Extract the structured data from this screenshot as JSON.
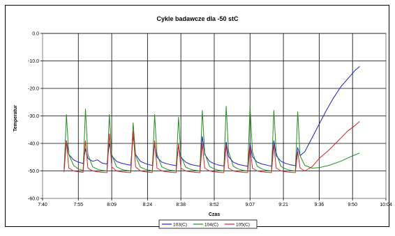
{
  "chart_data": {
    "type": "line",
    "title": "Cykle badawcze dla -50 stC",
    "xlabel": "Czas",
    "ylabel": "Temperatur",
    "ylim": [
      -60.0,
      0.0
    ],
    "y_ticks": [
      "0.0",
      "-10.0",
      "-20.0",
      "-30.0",
      "-40.0",
      "-50.0",
      "-60.0"
    ],
    "x_ticks": [
      "7:40",
      "7:55",
      "8:09",
      "8:24",
      "8:38",
      "8:52",
      "9:07",
      "9:21",
      "9:36",
      "9:50",
      "10:04"
    ],
    "grid": true,
    "legend_position": "bottom",
    "series": [
      {
        "name": "103(C)",
        "color": "#1f1fcf",
        "points": [
          [
            "7:49",
            -49.0
          ],
          [
            "7:50",
            -39.0
          ],
          [
            "7:51",
            -44.0
          ],
          [
            "7:53",
            -46.0
          ],
          [
            "7:55",
            -46.8
          ],
          [
            "7:57",
            -47.3
          ],
          [
            "7:58",
            -42.0
          ],
          [
            "7:59",
            -45.5
          ],
          [
            "8:01",
            -46.5
          ],
          [
            "8:03",
            -46.0
          ],
          [
            "8:05",
            -47.2
          ],
          [
            "8:07",
            -47.5
          ],
          [
            "8:08",
            -40.0
          ],
          [
            "8:09",
            -44.5
          ],
          [
            "8:11",
            -46.5
          ],
          [
            "8:13",
            -47.2
          ],
          [
            "8:15",
            -47.6
          ],
          [
            "8:17",
            -47.9
          ],
          [
            "8:18",
            -37.0
          ],
          [
            "8:19",
            -44.0
          ],
          [
            "8:21",
            -46.5
          ],
          [
            "8:23",
            -47.3
          ],
          [
            "8:25",
            -47.8
          ],
          [
            "8:26",
            -48.0
          ],
          [
            "8:27",
            -40.5
          ],
          [
            "8:28",
            -45.0
          ],
          [
            "8:30",
            -46.8
          ],
          [
            "8:32",
            -47.4
          ],
          [
            "8:34",
            -47.8
          ],
          [
            "8:36",
            -48.1
          ],
          [
            "8:37",
            -41.0
          ],
          [
            "8:38",
            -45.0
          ],
          [
            "8:40",
            -46.8
          ],
          [
            "8:42",
            -47.6
          ],
          [
            "8:44",
            -48.0
          ],
          [
            "8:46",
            -48.3
          ],
          [
            "8:47",
            -37.5
          ],
          [
            "8:48",
            -44.0
          ],
          [
            "8:50",
            -46.5
          ],
          [
            "8:52",
            -47.4
          ],
          [
            "8:54",
            -47.9
          ],
          [
            "8:56",
            -48.2
          ],
          [
            "8:57",
            -39.5
          ],
          [
            "8:58",
            -44.8
          ],
          [
            "9:00",
            -46.8
          ],
          [
            "9:02",
            -47.6
          ],
          [
            "9:04",
            -48.0
          ],
          [
            "9:06",
            -48.3
          ],
          [
            "9:07",
            -40.0
          ],
          [
            "9:08",
            -44.8
          ],
          [
            "9:10",
            -46.8
          ],
          [
            "9:12",
            -47.5
          ],
          [
            "9:14",
            -47.9
          ],
          [
            "9:16",
            -48.3
          ],
          [
            "9:17",
            -39.0
          ],
          [
            "9:18",
            -44.5
          ],
          [
            "9:20",
            -46.5
          ],
          [
            "9:22",
            -47.3
          ],
          [
            "9:24",
            -47.8
          ],
          [
            "9:26",
            -48.1
          ],
          [
            "9:27",
            -41.5
          ],
          [
            "9:28",
            -44.5
          ],
          [
            "9:30",
            -43.0
          ],
          [
            "9:33",
            -38.0
          ],
          [
            "9:36",
            -33.0
          ],
          [
            "9:39",
            -28.0
          ],
          [
            "9:42",
            -23.5
          ],
          [
            "9:45",
            -19.5
          ],
          [
            "9:48",
            -16.5
          ],
          [
            "9:51",
            -13.5
          ],
          [
            "9:53",
            -12.0
          ]
        ]
      },
      {
        "name": "104(C)",
        "color": "#1f8f1f",
        "points": [
          [
            "7:49",
            -50.0
          ],
          [
            "7:50",
            -29.5
          ],
          [
            "7:51",
            -44.0
          ],
          [
            "7:53",
            -48.0
          ],
          [
            "7:55",
            -49.3
          ],
          [
            "7:57",
            -49.8
          ],
          [
            "7:58",
            -27.5
          ],
          [
            "7:59",
            -44.0
          ],
          [
            "8:01",
            -48.5
          ],
          [
            "8:03",
            -49.4
          ],
          [
            "8:05",
            -49.8
          ],
          [
            "8:07",
            -50.0
          ],
          [
            "8:08",
            -29.5
          ],
          [
            "8:09",
            -44.0
          ],
          [
            "8:11",
            -48.5
          ],
          [
            "8:13",
            -49.4
          ],
          [
            "8:15",
            -49.8
          ],
          [
            "8:17",
            -50.0
          ],
          [
            "8:18",
            -32.5
          ],
          [
            "8:19",
            -44.5
          ],
          [
            "8:21",
            -48.6
          ],
          [
            "8:23",
            -49.4
          ],
          [
            "8:25",
            -49.8
          ],
          [
            "8:26",
            -50.0
          ],
          [
            "8:27",
            -29.5
          ],
          [
            "8:28",
            -44.0
          ],
          [
            "8:30",
            -48.5
          ],
          [
            "8:32",
            -49.4
          ],
          [
            "8:34",
            -49.8
          ],
          [
            "8:36",
            -50.0
          ],
          [
            "8:37",
            -30.5
          ],
          [
            "8:38",
            -44.5
          ],
          [
            "8:40",
            -48.6
          ],
          [
            "8:42",
            -49.4
          ],
          [
            "8:44",
            -49.8
          ],
          [
            "8:46",
            -50.0
          ],
          [
            "8:47",
            -28.0
          ],
          [
            "8:48",
            -43.5
          ],
          [
            "8:50",
            -48.4
          ],
          [
            "8:52",
            -49.3
          ],
          [
            "8:54",
            -49.8
          ],
          [
            "8:56",
            -50.0
          ],
          [
            "8:57",
            -26.5
          ],
          [
            "8:58",
            -43.0
          ],
          [
            "9:00",
            -48.3
          ],
          [
            "9:02",
            -49.3
          ],
          [
            "9:04",
            -49.8
          ],
          [
            "9:06",
            -50.0
          ],
          [
            "9:07",
            -26.5
          ],
          [
            "9:08",
            -43.0
          ],
          [
            "9:10",
            -48.3
          ],
          [
            "9:12",
            -49.3
          ],
          [
            "9:14",
            -49.8
          ],
          [
            "9:16",
            -50.0
          ],
          [
            "9:17",
            -28.0
          ],
          [
            "9:18",
            -43.5
          ],
          [
            "9:20",
            -48.4
          ],
          [
            "9:22",
            -49.3
          ],
          [
            "9:24",
            -49.8
          ],
          [
            "9:26",
            -50.0
          ],
          [
            "9:27",
            -28.5
          ],
          [
            "9:28",
            -44.5
          ],
          [
            "9:30",
            -48.0
          ],
          [
            "9:33",
            -49.0
          ],
          [
            "9:36",
            -48.8
          ],
          [
            "9:40",
            -48.0
          ],
          [
            "9:45",
            -46.5
          ],
          [
            "9:50",
            -44.5
          ],
          [
            "9:53",
            -43.5
          ]
        ]
      },
      {
        "name": "105(C)",
        "color": "#e02020",
        "points": [
          [
            "7:49",
            -50.5
          ],
          [
            "7:50",
            -39.0
          ],
          [
            "7:51",
            -49.0
          ],
          [
            "7:53",
            -50.0
          ],
          [
            "7:55",
            -50.3
          ],
          [
            "7:57",
            -50.5
          ],
          [
            "7:58",
            -39.0
          ],
          [
            "7:59",
            -49.0
          ],
          [
            "8:01",
            -50.0
          ],
          [
            "8:03",
            -50.3
          ],
          [
            "8:05",
            -50.5
          ],
          [
            "8:07",
            -50.6
          ],
          [
            "8:08",
            -36.5
          ],
          [
            "8:09",
            -48.5
          ],
          [
            "8:11",
            -50.0
          ],
          [
            "8:13",
            -50.3
          ],
          [
            "8:15",
            -50.5
          ],
          [
            "8:17",
            -50.6
          ],
          [
            "8:18",
            -35.5
          ],
          [
            "8:19",
            -48.5
          ],
          [
            "8:21",
            -50.0
          ],
          [
            "8:23",
            -50.3
          ],
          [
            "8:25",
            -50.5
          ],
          [
            "8:26",
            -50.6
          ],
          [
            "8:27",
            -39.0
          ],
          [
            "8:28",
            -49.0
          ],
          [
            "8:30",
            -50.0
          ],
          [
            "8:32",
            -50.3
          ],
          [
            "8:34",
            -50.5
          ],
          [
            "8:36",
            -50.6
          ],
          [
            "8:37",
            -40.0
          ],
          [
            "8:38",
            -49.0
          ],
          [
            "8:40",
            -50.0
          ],
          [
            "8:42",
            -50.3
          ],
          [
            "8:44",
            -50.5
          ],
          [
            "8:46",
            -50.6
          ],
          [
            "8:47",
            -40.0
          ],
          [
            "8:48",
            -49.0
          ],
          [
            "8:50",
            -50.0
          ],
          [
            "8:52",
            -50.3
          ],
          [
            "8:54",
            -50.5
          ],
          [
            "8:56",
            -50.6
          ],
          [
            "8:57",
            -40.5
          ],
          [
            "8:58",
            -49.0
          ],
          [
            "9:00",
            -50.0
          ],
          [
            "9:02",
            -50.3
          ],
          [
            "9:04",
            -50.5
          ],
          [
            "9:06",
            -50.6
          ],
          [
            "9:07",
            -41.0
          ],
          [
            "9:08",
            -49.0
          ],
          [
            "9:10",
            -50.0
          ],
          [
            "9:12",
            -50.3
          ],
          [
            "9:14",
            -50.5
          ],
          [
            "9:16",
            -50.6
          ],
          [
            "9:17",
            -40.5
          ],
          [
            "9:18",
            -49.0
          ],
          [
            "9:20",
            -50.0
          ],
          [
            "9:22",
            -50.3
          ],
          [
            "9:24",
            -50.5
          ],
          [
            "9:26",
            -50.6
          ],
          [
            "9:27",
            -43.0
          ],
          [
            "9:28",
            -49.0
          ],
          [
            "9:30",
            -50.0
          ],
          [
            "9:33",
            -48.5
          ],
          [
            "9:36",
            -45.5
          ],
          [
            "9:40",
            -42.5
          ],
          [
            "9:44",
            -39.0
          ],
          [
            "9:48",
            -35.5
          ],
          [
            "9:51",
            -33.5
          ],
          [
            "9:53",
            -32.0
          ]
        ]
      }
    ]
  }
}
